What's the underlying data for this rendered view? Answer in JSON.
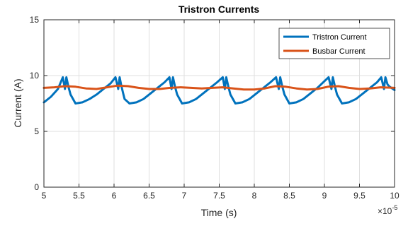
{
  "chart_data": {
    "type": "line",
    "title": "Tristron Currents",
    "xlabel": "Time (s)",
    "ylabel": "Current (A)",
    "x_multiplier_label": "×10",
    "x_multiplier_exponent": "-5",
    "xlim": [
      5,
      10
    ],
    "ylim": [
      0,
      15
    ],
    "xticks": [
      5,
      5.5,
      6,
      6.5,
      7,
      7.5,
      8,
      8.5,
      9,
      9.5,
      10
    ],
    "xtick_labels": [
      "5",
      "5.5",
      "6",
      "6.5",
      "7",
      "7.5",
      "8",
      "8.5",
      "9",
      "9.5",
      "10"
    ],
    "yticks": [
      0,
      5,
      10,
      15
    ],
    "ytick_labels": [
      "0",
      "5",
      "10",
      "15"
    ],
    "grid": true,
    "legend_position": "top-right",
    "series": [
      {
        "name": "Tristron Current",
        "color": "#0072BD",
        "x": [
          5.0,
          5.1,
          5.2,
          5.27,
          5.3,
          5.32,
          5.35,
          5.38,
          5.45,
          5.55,
          5.65,
          5.75,
          5.85,
          5.95,
          6.02,
          6.06,
          6.08,
          6.1,
          6.13,
          6.15,
          6.22,
          6.32,
          6.42,
          6.52,
          6.62,
          6.72,
          6.79,
          6.82,
          6.84,
          6.87,
          6.9,
          6.97,
          7.07,
          7.17,
          7.27,
          7.37,
          7.47,
          7.55,
          7.58,
          7.6,
          7.63,
          7.66,
          7.73,
          7.83,
          7.93,
          8.03,
          8.13,
          8.23,
          8.31,
          8.35,
          8.37,
          8.4,
          8.43,
          8.5,
          8.6,
          8.7,
          8.8,
          8.9,
          9.0,
          9.06,
          9.1,
          9.12,
          9.15,
          9.18,
          9.25,
          9.35,
          9.45,
          9.55,
          9.65,
          9.75,
          9.81,
          9.85,
          9.87,
          9.9,
          9.93,
          10.0
        ],
        "y": [
          7.6,
          8.1,
          8.8,
          9.85,
          8.8,
          9.85,
          9.0,
          8.3,
          7.5,
          7.6,
          7.9,
          8.3,
          8.8,
          9.3,
          9.85,
          8.8,
          9.85,
          9.2,
          8.4,
          7.9,
          7.5,
          7.6,
          7.9,
          8.4,
          8.9,
          9.4,
          9.85,
          8.8,
          9.85,
          9.0,
          8.3,
          7.5,
          7.6,
          7.9,
          8.4,
          8.9,
          9.4,
          9.85,
          8.8,
          9.85,
          9.0,
          8.3,
          7.5,
          7.6,
          7.9,
          8.4,
          8.9,
          9.4,
          9.85,
          8.8,
          9.85,
          9.0,
          8.3,
          7.5,
          7.6,
          7.9,
          8.4,
          8.9,
          9.5,
          9.85,
          8.8,
          9.85,
          9.0,
          8.3,
          7.5,
          7.6,
          7.9,
          8.4,
          8.9,
          9.4,
          9.85,
          8.8,
          9.85,
          9.2,
          9.0,
          8.7
        ]
      },
      {
        "name": "Busbar Current",
        "color": "#D95319",
        "x": [
          5.0,
          5.15,
          5.3,
          5.45,
          5.6,
          5.75,
          5.9,
          6.05,
          6.2,
          6.35,
          6.5,
          6.65,
          6.8,
          6.95,
          7.1,
          7.25,
          7.4,
          7.55,
          7.7,
          7.85,
          8.0,
          8.15,
          8.3,
          8.45,
          8.6,
          8.75,
          8.9,
          9.05,
          9.2,
          9.35,
          9.5,
          9.65,
          9.8,
          10.0
        ],
        "y": [
          8.9,
          8.95,
          9.05,
          9.0,
          8.85,
          8.8,
          8.95,
          9.1,
          9.05,
          8.9,
          8.8,
          8.8,
          8.9,
          8.95,
          8.9,
          8.85,
          8.9,
          8.95,
          8.85,
          8.75,
          8.75,
          8.85,
          9.05,
          9.0,
          8.85,
          8.75,
          8.8,
          9.0,
          9.05,
          8.9,
          8.8,
          8.85,
          8.95,
          8.9
        ]
      }
    ]
  }
}
